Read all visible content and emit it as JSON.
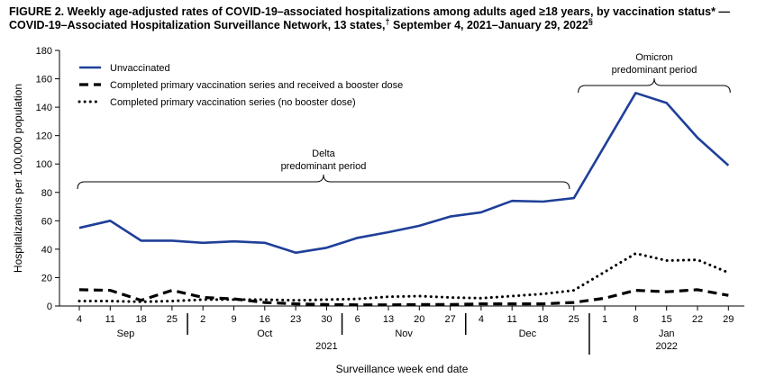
{
  "figure": {
    "title_line1": "FIGURE 2. Weekly age-adjusted rates of COVID-19–associated hospitalizations among adults aged ≥18 years, by vaccination status* —",
    "title_line2": "COVID-19–Associated Hospitalization Surveillance Network, 13 states,",
    "title_dagger": "†",
    "title_line2b": " September 4, 2021–January 29, 2022",
    "title_section": "§"
  },
  "chart_data": {
    "type": "line",
    "ylabel": "Hospitalizations per 100,000 population",
    "xlabel": "Surveillance week end date",
    "ylim": [
      0,
      180
    ],
    "yticks": [
      0,
      20,
      40,
      60,
      80,
      100,
      120,
      140,
      160,
      180
    ],
    "x": [
      "4",
      "11",
      "18",
      "25",
      "2",
      "9",
      "16",
      "23",
      "30",
      "6",
      "13",
      "20",
      "27",
      "4",
      "11",
      "18",
      "25",
      "1",
      "8",
      "15",
      "22",
      "29"
    ],
    "months": [
      {
        "label": "Sep",
        "start": 0,
        "end": 3
      },
      {
        "label": "Oct",
        "start": 4,
        "end": 8
      },
      {
        "label": "Nov",
        "start": 9,
        "end": 12
      },
      {
        "label": "Dec",
        "start": 13,
        "end": 16
      },
      {
        "label": "Jan",
        "start": 17,
        "end": 21
      }
    ],
    "years": [
      {
        "label": "2021",
        "start": 0,
        "end": 16
      },
      {
        "label": "2022",
        "start": 17,
        "end": 21
      }
    ],
    "series": [
      {
        "name": "Unvaccinated",
        "style": "solid",
        "color": "#1f3f99",
        "values": [
          55,
          60,
          46,
          46,
          44.5,
          45.5,
          44.5,
          37.5,
          41,
          48,
          52,
          56.5,
          63,
          66,
          74,
          73.5,
          76,
          113,
          150,
          143,
          118.5,
          99
        ]
      },
      {
        "name": "Completed primary vaccination series and received a booster dose",
        "style": "dashed",
        "color": "#000000",
        "values": [
          11.5,
          11,
          4,
          11,
          6,
          5,
          2.5,
          1.5,
          1,
          0.8,
          0.8,
          1,
          1,
          1.5,
          1.5,
          1.5,
          2.5,
          5.5,
          11,
          10,
          11.5,
          7.5
        ]
      },
      {
        "name": "Completed primary vaccination series (no booster dose)",
        "style": "dotted",
        "color": "#000000",
        "values": [
          3.5,
          3.5,
          3,
          3.5,
          4.5,
          4.5,
          4.5,
          4,
          4.5,
          5,
          6.5,
          7,
          6,
          5.5,
          7,
          8.5,
          11,
          24,
          37,
          32,
          32.5,
          23.5
        ]
      }
    ],
    "annotations": [
      {
        "text_line1": "Delta",
        "text_line2": "predominant period",
        "start": 0,
        "end": 15.8
      },
      {
        "text_line1": "Omicron",
        "text_line2": "predominant period",
        "start": 16.2,
        "end": 21
      }
    ],
    "legend_position": "top-left",
    "grid": false
  }
}
